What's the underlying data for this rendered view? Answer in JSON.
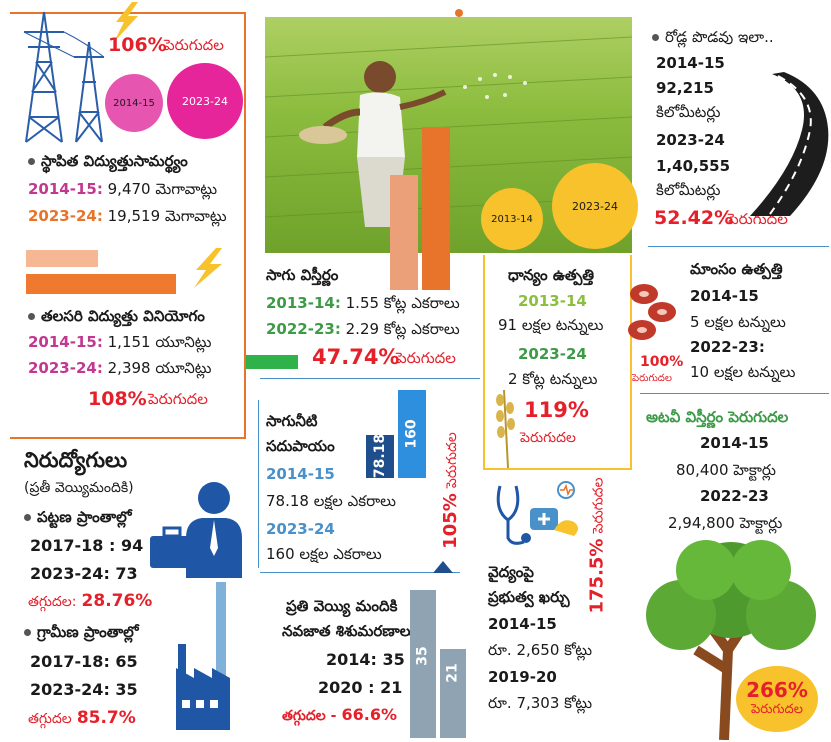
{
  "colors": {
    "orange": "#e8732a",
    "pink": "#e6379a",
    "red": "#e5202a",
    "navy": "#1f56a6",
    "yellow": "#f7c22b",
    "green": "#3d9b48"
  },
  "power": {
    "growth_pct": "106%",
    "growth_word": "పెరుగుదల",
    "circle_small": "2014-15",
    "circle_big": "2023-24",
    "title": "స్థాపిత విద్యుత్తుసామర్థ్యం",
    "row1_year": "2014-15:",
    "row1_value": "9,470 మెగావాట్లు",
    "row2_year": "2023-24:",
    "row2_value": "19,519 మెగావాట్లు"
  },
  "percapita": {
    "title": "తలసరి విద్యుత్తు వినియోగం",
    "row1_year": "2014-15:",
    "row1_value": "1,151 యూనిట్లు",
    "row2_year": "2023-24:",
    "row2_value": "2,398 యూనిట్లు",
    "growth_pct": "108%",
    "growth_word": "పెరుగుదల"
  },
  "cultivation": {
    "title": "సాగు విస్తీర్ణం",
    "row1_year": "2013-14:",
    "row1_value": "1.55 కోట్ల ఎకరాలు",
    "row2_year": "2022-23:",
    "row2_value": "2.29 కోట్ల ఎకరాలు",
    "growth_pct": "47.74%",
    "growth_word": "పెరుగుదల"
  },
  "grain": {
    "title": "ధాన్యం ఉత్పత్తి",
    "circle_small": "2013-14",
    "circle_big": "2023-24",
    "row1_year": "2013-14",
    "row1_value": "91 లక్షల టన్నులు",
    "row2_year": "2023-24",
    "row2_value": "2 కోట్ల టన్నులు",
    "growth_pct": "119%",
    "growth_word": "పెరుగుదల"
  },
  "roads": {
    "title": "రోడ్ల పొడవు ఇలా..",
    "row1_year": "2014-15",
    "row1_value": "92,215",
    "row1_unit": "కిలోమీటర్లు",
    "row2_year": "2023-24",
    "row2_value": "1,40,555",
    "row2_unit": "కిలోమీటర్లు",
    "growth_pct": "52.42%",
    "growth_word": "పెరుగుదల"
  },
  "meat": {
    "title": "మాంసం ఉత్పత్తి",
    "row1_year": "2014-15",
    "row1_value": "5 లక్షల టన్నులు",
    "row2_year": "2022-23:",
    "row2_value": "10 లక్షల టన్నులు",
    "growth_pct": "100%",
    "growth_word": "పెరుగుదల"
  },
  "forest": {
    "title": "అటవీ విస్తీర్ణం పెరుగుదల",
    "row1_year": "2014-15",
    "row1_value": "80,400 హెక్టార్లు",
    "row2_year": "2022-23",
    "row2_value": "2,94,800 హెక్టార్లు",
    "growth_pct": "266%",
    "growth_word": "పెరుగుదల"
  },
  "irrigation": {
    "title1": "సాగునీటి",
    "title2": "సదుపాయం",
    "row1_year": "2014-15",
    "row1_value": "78.18 లక్షల ఎకరాలు",
    "row2_year": "2023-24",
    "row2_value": "160 లక్షల ఎకరాలు",
    "bar1_label": "78.18",
    "bar2_label": "160",
    "bar1_level": 78.18,
    "bar2_level": 160,
    "growth_pct": "105%",
    "growth_word": "పెరుగుదల"
  },
  "unemployment": {
    "title": "నిరుద్యోగులు",
    "subtitle": "(ప్రతీ వెయ్యిమందికి)",
    "urban_title": "పట్టణ ప్రాంతాల్లో",
    "urban_row1": "2017-18 : 94",
    "urban_row2": "2023-24: 73",
    "urban_drop_label": "తగ్గుదల:",
    "urban_drop_value": "28.76%",
    "rural_title": "గ్రామీణ ప్రాంతాల్లో",
    "rural_row1": "2017-18: 65",
    "rural_row2": "2023-24: 35",
    "rural_drop_label": "తగ్గుదల",
    "rural_drop_value": "85.7%"
  },
  "infant": {
    "title1": "ప్రతి వెయ్యి మందికి",
    "title2": "నవజాత శిశుమరణాలు",
    "row1": "2014: 35",
    "row2": "2020 : 21",
    "drop_label": "తగ్గుదల -",
    "drop_value": "66.6%",
    "bar1_label": "35",
    "bar2_label": "21",
    "bar1_level": 35,
    "bar2_level": 21
  },
  "health": {
    "title1": "వైద్యంపై",
    "title2": "ప్రభుత్వ ఖర్చు",
    "row1_year": "2014-15",
    "row1_value": "రూ. 2,650 కోట్లు",
    "row2_year": "2019-20",
    "row2_value": "రూ. 7,303 కోట్లు",
    "growth_pct": "175.5%",
    "growth_word": "పెరుగుదల"
  }
}
